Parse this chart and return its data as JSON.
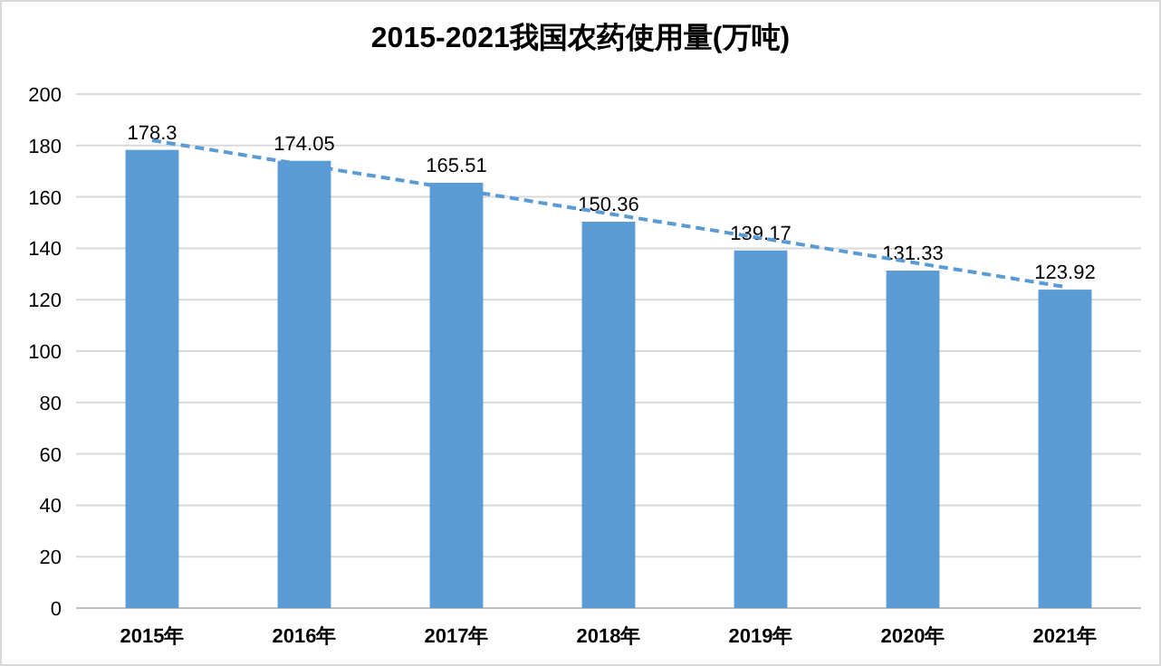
{
  "chart_data": {
    "type": "bar",
    "title": "2015-2021我国农药使用量(万吨)",
    "categories": [
      "2015年",
      "2016年",
      "2017年",
      "2018年",
      "2019年",
      "2020年",
      "2021年"
    ],
    "series": [
      {
        "color": "#5b9bd5",
        "values": [
          178.3,
          174.05,
          165.51,
          150.36,
          139.17,
          131.33,
          123.92
        ],
        "value_labels": [
          "178.3",
          "174.05",
          "165.51",
          "150.36",
          "139.17",
          "131.33",
          "123.92"
        ]
      },
      {
        "type": "line",
        "color": "#5b9bd5",
        "line_style": "dashed",
        "x": [
          "2015年",
          "2021年"
        ],
        "values": [
          182,
          125
        ]
      }
    ],
    "ylim": [
      0,
      200
    ],
    "yticks": [
      0,
      20,
      40,
      60,
      80,
      100,
      120,
      140,
      160,
      180,
      200
    ],
    "grid": "y"
  }
}
